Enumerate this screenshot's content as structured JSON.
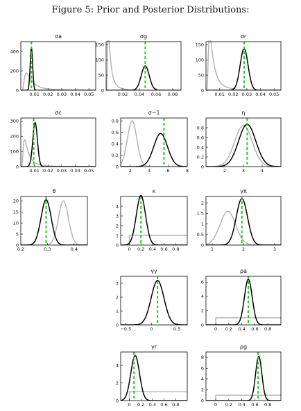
{
  "figure_title": "Figure 5: Prior and Posterior Distributions:",
  "colors": {
    "prior": "#b0b0b0",
    "posterior": "#000000",
    "mode": "#22cc22",
    "axis": "#000000"
  },
  "chart_data": [
    {
      "type": "line",
      "title": "σa",
      "xlim": [
        0,
        0.055
      ],
      "ylim": [
        0,
        500
      ],
      "xticks": [
        0.01,
        0.02,
        0.03,
        0.04,
        0.05
      ],
      "xtick_labels": [
        "0.01",
        "0.02",
        "0.03",
        "0.04",
        "0.05"
      ],
      "yticks": [
        0,
        200,
        400
      ],
      "ytick_labels": [
        "0",
        "200",
        "400"
      ],
      "series": [
        {
          "role": "prior",
          "kind": "invgamma",
          "peak": [
            0.006,
            145
          ],
          "support": [
            0.0005,
            0.055
          ]
        },
        {
          "role": "posterior",
          "kind": "normal",
          "mean": 0.0078,
          "sd": 0.0009,
          "peak": 440
        }
      ],
      "mode_line": 0.0078
    },
    {
      "type": "line",
      "title": "σg",
      "xlim": [
        0,
        0.09
      ],
      "ylim": [
        0,
        160
      ],
      "xticks": [
        0.02,
        0.04,
        0.06,
        0.08
      ],
      "xtick_labels": [
        "0.02",
        "0.04",
        "0.06",
        "0.08"
      ],
      "yticks": [
        0,
        50,
        100,
        150
      ],
      "ytick_labels": [
        "0",
        "50",
        "100",
        "150"
      ],
      "series": [
        {
          "role": "prior",
          "kind": "invgamma",
          "peak": [
            0.004,
            148
          ],
          "support": [
            0.0005,
            0.09
          ]
        },
        {
          "role": "posterior",
          "kind": "normal",
          "mean": 0.047,
          "sd": 0.0048,
          "peak": 80
        }
      ],
      "mode_line": 0.047
    },
    {
      "type": "line",
      "title": "σr",
      "xlim": [
        0,
        0.055
      ],
      "ylim": [
        0,
        160
      ],
      "xticks": [
        0.01,
        0.02,
        0.03,
        0.04,
        0.05
      ],
      "xtick_labels": [
        "0.01",
        "0.02",
        "0.03",
        "0.04",
        "0.05"
      ],
      "yticks": [
        0,
        50,
        100,
        150
      ],
      "ytick_labels": [
        "0",
        "50",
        "100",
        "150"
      ],
      "series": [
        {
          "role": "prior",
          "kind": "invgamma",
          "peak": [
            0.004,
            148
          ],
          "support": [
            0.0005,
            0.055
          ]
        },
        {
          "role": "posterior",
          "kind": "normal",
          "mean": 0.028,
          "sd": 0.0029,
          "peak": 137
        }
      ],
      "mode_line": 0.028
    },
    {
      "type": "line",
      "title": "σc",
      "xlim": [
        0,
        0.055
      ],
      "ylim": [
        0,
        320
      ],
      "xticks": [
        0.01,
        0.02,
        0.03,
        0.04,
        0.05
      ],
      "xtick_labels": [
        "0.01",
        "0.02",
        "0.03",
        "0.04",
        "0.05"
      ],
      "yticks": [
        0,
        100,
        200,
        300
      ],
      "ytick_labels": [
        "0",
        "100",
        "200",
        "300"
      ],
      "series": [
        {
          "role": "prior",
          "kind": "invgamma",
          "peak": [
            0.004,
            145
          ],
          "support": [
            0.0005,
            0.055
          ]
        },
        {
          "role": "posterior",
          "kind": "normal",
          "mean": 0.0105,
          "sd": 0.0017,
          "peak": 290
        }
      ],
      "mode_line": 0.0095
    },
    {
      "type": "line",
      "title": "σ−1",
      "xlim": [
        1,
        8
      ],
      "ylim": [
        0,
        0.85
      ],
      "xticks": [
        2,
        4,
        6,
        8
      ],
      "xtick_labels": [
        "2",
        "4",
        "6",
        "8"
      ],
      "yticks": [
        0,
        0.2,
        0.4,
        0.6,
        0.8
      ],
      "ytick_labels": [
        "0",
        "0.2",
        "0.4",
        "0.6",
        "0.8"
      ],
      "series": [
        {
          "role": "prior",
          "kind": "normal",
          "mean": 2.2,
          "sd": 0.5,
          "peak": 0.8
        },
        {
          "role": "posterior",
          "kind": "normal",
          "mean": 5.2,
          "sd": 0.72,
          "peak": 0.58
        }
      ],
      "mode_line": 5.55
    },
    {
      "type": "line",
      "title": "η",
      "xlim": [
        1,
        5
      ],
      "ylim": [
        0,
        1.0
      ],
      "xticks": [
        2,
        3,
        4
      ],
      "xtick_labels": [
        "2",
        "3",
        "4"
      ],
      "yticks": [
        0,
        0.2,
        0.4,
        0.6,
        0.8
      ],
      "ytick_labels": [
        "0",
        "0.2",
        "0.4",
        "0.6",
        "0.8"
      ],
      "series": [
        {
          "role": "prior",
          "kind": "normal",
          "mean": 3.0,
          "sd": 0.47,
          "peak": 0.85
        },
        {
          "role": "posterior",
          "kind": "normal",
          "mean": 3.2,
          "sd": 0.46,
          "peak": 0.87
        }
      ],
      "mode_line": 3.2
    },
    {
      "type": "line",
      "title": "θ",
      "xlim": [
        0.2,
        0.45
      ],
      "ylim": [
        0,
        22
      ],
      "xticks": [
        0.2,
        0.3,
        0.4
      ],
      "xtick_labels": [
        "0.2",
        "0.3",
        "0.4"
      ],
      "yticks": [
        0,
        5,
        10,
        15,
        20
      ],
      "ytick_labels": [
        "0",
        "5",
        "10",
        "15",
        "20"
      ],
      "series": [
        {
          "role": "prior",
          "kind": "normal",
          "mean": 0.36,
          "sd": 0.019,
          "peak": 20
        },
        {
          "role": "posterior",
          "kind": "normal",
          "mean": 0.295,
          "sd": 0.019,
          "peak": 20.5
        }
      ],
      "mode_line": 0.295
    },
    {
      "type": "line",
      "title": "κ",
      "xlim": [
        -0.15,
        1.0
      ],
      "ylim": [
        0,
        5
      ],
      "xticks": [
        0,
        0.2,
        0.4,
        0.6,
        0.8
      ],
      "xtick_labels": [
        "0",
        "0.2",
        "0.4",
        "0.6",
        "0.8"
      ],
      "yticks": [
        0,
        1,
        2,
        3,
        4
      ],
      "ytick_labels": [
        "0",
        "1",
        "2",
        "3",
        "4"
      ],
      "series": [
        {
          "role": "prior",
          "kind": "uniform",
          "low": 0,
          "high": 1.0,
          "height": 1
        },
        {
          "role": "posterior",
          "kind": "normal",
          "mean": 0.2,
          "sd": 0.08,
          "peak": 5.1
        }
      ],
      "mode_line": 0.2
    },
    {
      "type": "line",
      "title": "γπ",
      "xlim": [
        0.8,
        3.2
      ],
      "ylim": [
        0,
        2.3
      ],
      "xticks": [
        1,
        2,
        3
      ],
      "xtick_labels": [
        "1",
        "2",
        "3"
      ],
      "yticks": [
        0,
        0.5,
        1,
        1.5,
        2
      ],
      "ytick_labels": [
        "0",
        "0.5",
        "1",
        "1.5",
        "2"
      ],
      "series": [
        {
          "role": "prior",
          "kind": "normal",
          "mean": 1.5,
          "sd": 0.25,
          "peak": 1.6
        },
        {
          "role": "posterior",
          "kind": "normal",
          "mean": 1.95,
          "sd": 0.18,
          "peak": 2.2
        }
      ],
      "mode_line": 1.95
    },
    {
      "type": "line",
      "title": "γy",
      "xlim": [
        -0.6,
        0.7
      ],
      "ylim": [
        0,
        3.5
      ],
      "xticks": [
        -0.5,
        0,
        0.5
      ],
      "xtick_labels": [
        "−0.5",
        "0",
        "0.5"
      ],
      "yticks": [
        0,
        1,
        2,
        3
      ],
      "ytick_labels": [
        "0",
        "1",
        "2",
        "3"
      ],
      "series": [
        {
          "role": "posterior",
          "kind": "normal",
          "mean": 0.12,
          "sd": 0.125,
          "peak": 3.2
        }
      ],
      "mode_line": 0.12
    },
    {
      "type": "line",
      "title": "ρa",
      "xlim": [
        -0.15,
        1.0
      ],
      "ylim": [
        0,
        6.8
      ],
      "xticks": [
        0,
        0.2,
        0.4,
        0.6,
        0.8
      ],
      "xtick_labels": [
        "0",
        "0.2",
        "0.4",
        "0.6",
        "0.8"
      ],
      "yticks": [
        0,
        2,
        4,
        6
      ],
      "ytick_labels": [
        "0",
        "2",
        "4",
        "6"
      ],
      "series": [
        {
          "role": "prior",
          "kind": "uniform",
          "low": 0,
          "high": 1.0,
          "height": 1
        },
        {
          "role": "posterior",
          "kind": "normal",
          "mean": 0.5,
          "sd": 0.06,
          "peak": 6.4
        }
      ],
      "mode_line": 0.5
    },
    {
      "type": "line",
      "title": "γr",
      "xlim": [
        -0.15,
        1.0
      ],
      "ylim": [
        0,
        5.5
      ],
      "xticks": [
        0,
        0.2,
        0.4,
        0.6,
        0.8
      ],
      "xtick_labels": [
        "0",
        "0.2",
        "0.4",
        "0.6",
        "0.8"
      ],
      "yticks": [
        0,
        2,
        4
      ],
      "ytick_labels": [
        "0",
        "2",
        "4"
      ],
      "series": [
        {
          "role": "prior",
          "kind": "uniform",
          "low": 0,
          "high": 1.0,
          "height": 1
        },
        {
          "role": "posterior",
          "kind": "normal",
          "mean": 0.1,
          "sd": 0.075,
          "peak": 5.1
        }
      ],
      "mode_line": 0.08
    },
    {
      "type": "line",
      "title": "ρg",
      "xlim": [
        -0.15,
        1.0
      ],
      "ylim": [
        0,
        9
      ],
      "xticks": [
        0,
        0.2,
        0.4,
        0.6,
        0.8
      ],
      "xtick_labels": [
        "0",
        "0.2",
        "0.4",
        "0.6",
        "0.8"
      ],
      "yticks": [
        0,
        2,
        4,
        6,
        8
      ],
      "ytick_labels": [
        "0",
        "2",
        "4",
        "6",
        "8"
      ],
      "series": [
        {
          "role": "prior",
          "kind": "uniform",
          "low": 0,
          "high": 1.0,
          "height": 1
        },
        {
          "role": "posterior",
          "kind": "normal",
          "mean": 0.66,
          "sd": 0.048,
          "peak": 8.2
        }
      ],
      "mode_line": 0.65
    }
  ]
}
